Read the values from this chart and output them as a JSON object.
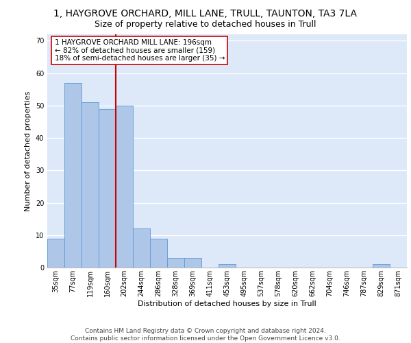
{
  "title_line1": "1, HAYGROVE ORCHARD, MILL LANE, TRULL, TAUNTON, TA3 7LA",
  "title_line2": "Size of property relative to detached houses in Trull",
  "xlabel": "Distribution of detached houses by size in Trull",
  "ylabel": "Number of detached properties",
  "categories": [
    "35sqm",
    "77sqm",
    "119sqm",
    "160sqm",
    "202sqm",
    "244sqm",
    "286sqm",
    "328sqm",
    "369sqm",
    "411sqm",
    "453sqm",
    "495sqm",
    "537sqm",
    "578sqm",
    "620sqm",
    "662sqm",
    "704sqm",
    "746sqm",
    "787sqm",
    "829sqm",
    "871sqm"
  ],
  "values": [
    9,
    57,
    51,
    49,
    50,
    12,
    9,
    3,
    3,
    0,
    1,
    0,
    0,
    0,
    0,
    0,
    0,
    0,
    0,
    1,
    0
  ],
  "bar_color": "#aec6e8",
  "bar_edge_color": "#5b9bd5",
  "reference_line_idx": 4,
  "reference_line_color": "#cc0000",
  "annotation_text": "1 HAYGROVE ORCHARD MILL LANE: 196sqm\n← 82% of detached houses are smaller (159)\n18% of semi-detached houses are larger (35) →",
  "annotation_box_color": "#ffffff",
  "annotation_box_edge_color": "#cc0000",
  "ylim": [
    0,
    72
  ],
  "yticks": [
    0,
    10,
    20,
    30,
    40,
    50,
    60,
    70
  ],
  "fig_background_color": "#ffffff",
  "axes_background_color": "#dde8f8",
  "grid_color": "#ffffff",
  "footer_text": "Contains HM Land Registry data © Crown copyright and database right 2024.\nContains public sector information licensed under the Open Government Licence v3.0.",
  "title_fontsize": 10,
  "subtitle_fontsize": 9,
  "axis_label_fontsize": 8,
  "tick_fontsize": 7,
  "annotation_fontsize": 7.5,
  "footer_fontsize": 6.5
}
